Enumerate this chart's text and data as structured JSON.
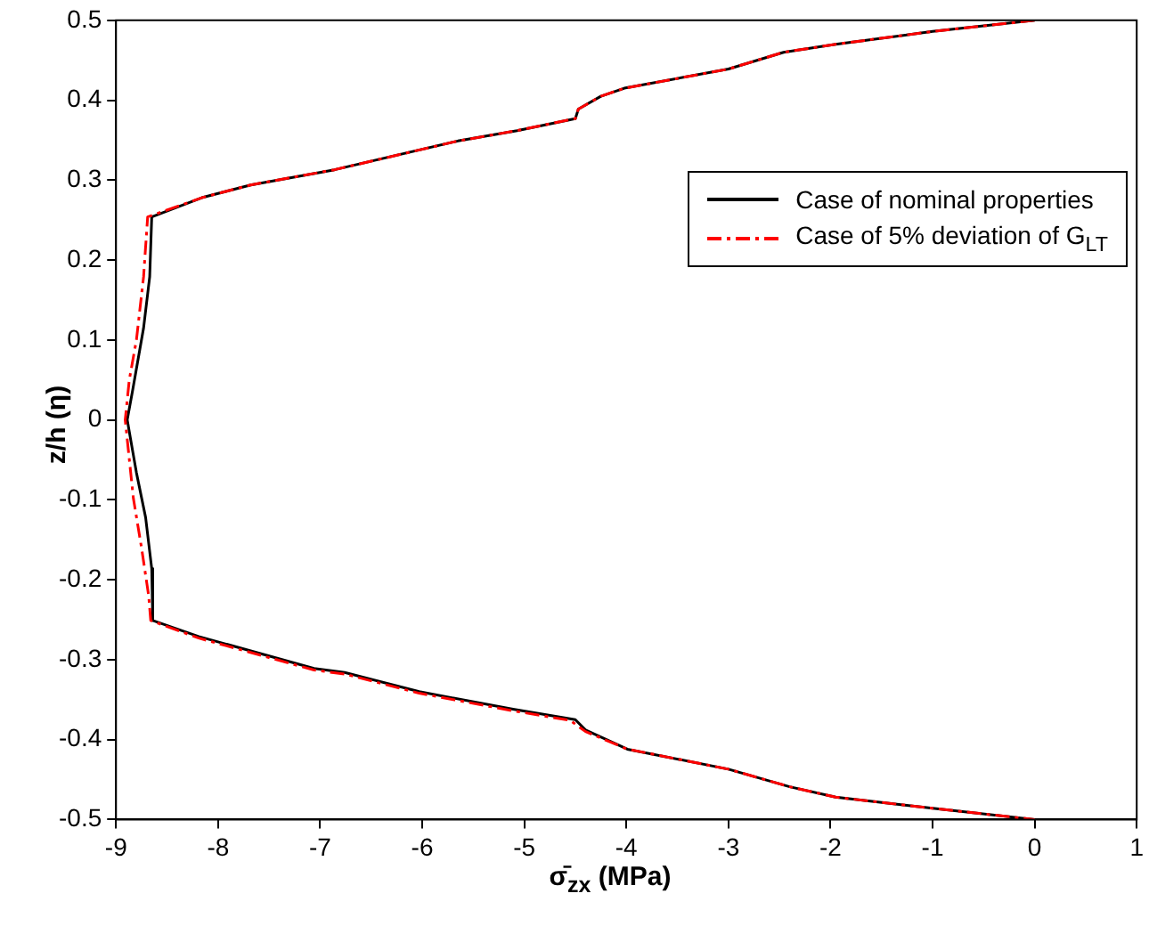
{
  "chart_data": {
    "type": "line",
    "xlabel": "σ̄$_{zx}$ (MPa)",
    "ylabel": "z/h (η)",
    "xlim": [
      -9,
      1
    ],
    "xticks": [
      -9,
      -8,
      -7,
      -6,
      -5,
      -4,
      -3,
      -2,
      -1,
      0,
      1
    ],
    "ylim": [
      -0.5,
      0.5
    ],
    "yticks": [
      -0.5,
      -0.4,
      -0.3,
      -0.2,
      -0.1,
      0,
      0.1,
      0.2,
      0.3,
      0.4,
      0.5
    ],
    "grid": false,
    "legend": "top right",
    "marker": "none",
    "series": [
      {
        "name": "Case of nominal properties",
        "color": "#000000",
        "line_style": "solid",
        "x": [
          0,
          -1.0,
          -1.95,
          -2.46,
          -3.0,
          -4.02,
          -4.25,
          -4.47,
          -4.5,
          -5.07,
          -5.65,
          -6.86,
          -7.68,
          -8.16,
          -8.65,
          -8.67,
          -8.73,
          -8.84,
          -8.89,
          -8.8,
          -8.71,
          -8.65,
          -8.64,
          -8.19,
          -7.06,
          -6.76,
          -6.03,
          -5.11,
          -4.5,
          -4.4,
          -3.99,
          -3.0,
          -2.4,
          -1.95,
          -1.0,
          0
        ],
        "values": [
          0.5,
          0.486,
          0.47,
          0.46,
          0.439,
          0.415,
          0.405,
          0.389,
          0.377,
          0.362,
          0.349,
          0.313,
          0.294,
          0.278,
          0.254,
          0.179,
          0.115,
          0.035,
          0,
          -0.066,
          -0.122,
          -0.186,
          -0.251,
          -0.271,
          -0.311,
          -0.316,
          -0.34,
          -0.362,
          -0.375,
          -0.388,
          -0.412,
          -0.437,
          -0.459,
          -0.472,
          -0.486,
          -0.5
        ]
      },
      {
        "name": "Case of 5% deviation of G$_{LT}$",
        "color": "#ff0000",
        "line_style": "dashed",
        "x": [
          0,
          -1.0,
          -1.95,
          -2.46,
          -3.0,
          -4.02,
          -4.25,
          -4.47,
          -4.5,
          -5.07,
          -5.65,
          -6.86,
          -7.68,
          -8.16,
          -8.69,
          -8.73,
          -8.8,
          -8.87,
          -8.91,
          -8.83,
          -8.75,
          -8.68,
          -8.66,
          -8.19,
          -7.06,
          -6.76,
          -6.03,
          -5.11,
          -4.55,
          -4.4,
          -3.99,
          -3.0,
          -2.4,
          -1.95,
          -1.0,
          0
        ],
        "values": [
          0.5,
          0.486,
          0.47,
          0.46,
          0.439,
          0.415,
          0.405,
          0.389,
          0.377,
          0.362,
          0.349,
          0.313,
          0.294,
          0.278,
          0.254,
          0.179,
          0.1,
          0.05,
          0,
          -0.098,
          -0.16,
          -0.22,
          -0.251,
          -0.273,
          -0.313,
          -0.318,
          -0.342,
          -0.364,
          -0.376,
          -0.39,
          -0.412,
          -0.437,
          -0.459,
          -0.472,
          -0.486,
          -0.5
        ]
      }
    ]
  }
}
